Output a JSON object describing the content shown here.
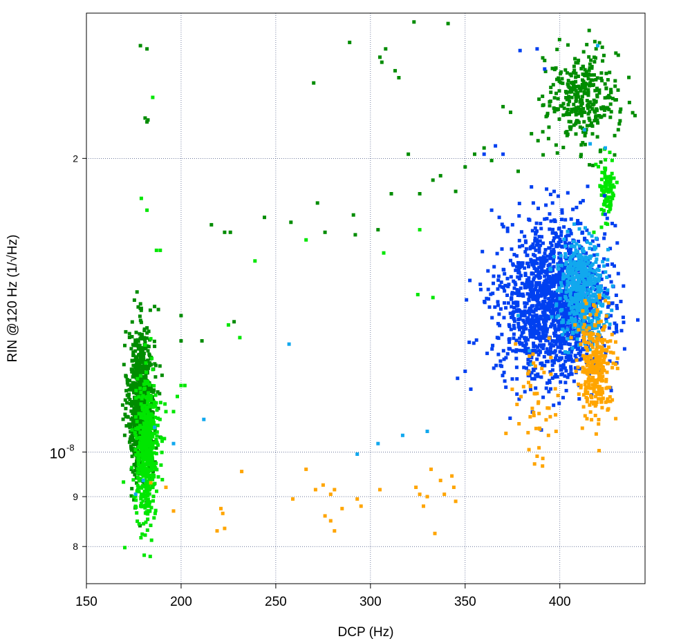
{
  "chart_data": {
    "type": "scatter",
    "xlabel": "DCP (Hz)",
    "ylabel": "RIN @120 Hz (1/√Hz)",
    "xlim": [
      150,
      445
    ],
    "ylim_log10": [
      -8.135,
      -7.55
    ],
    "y_scale": "log",
    "grid": true,
    "x_ticks": [
      {
        "value": 150,
        "label": "150"
      },
      {
        "value": 200,
        "label": "200"
      },
      {
        "value": 250,
        "label": "250"
      },
      {
        "value": 300,
        "label": "300"
      },
      {
        "value": 350,
        "label": "350"
      },
      {
        "value": 400,
        "label": "400"
      }
    ],
    "y_major_tick": {
      "value": 1e-08,
      "label": "10",
      "exponent": "-8"
    },
    "y_minor_ticks": [
      {
        "value": 8e-09,
        "label": "8"
      },
      {
        "value": 9e-09,
        "label": "9"
      },
      {
        "value": 2e-08,
        "label": "2"
      }
    ],
    "series": [
      {
        "color": "#008C00",
        "clusters": [
          {
            "n": 850,
            "x_mean": 179,
            "x_sd": 3.4,
            "y_mean": 1.12e-08,
            "y_sd_log10": 0.038
          },
          {
            "n": 330,
            "x_mean": 412,
            "x_sd": 9.5,
            "y_mean": 2.3e-08,
            "y_sd_log10": 0.025
          }
        ],
        "points": [
          [
            178.5,
            2.61e-08
          ],
          [
            182,
            2.59e-08
          ],
          [
            181,
            2.2e-08
          ],
          [
            182.5,
            2.19e-08
          ],
          [
            182,
            2.18e-08
          ],
          [
            186,
            1.41e-08
          ],
          [
            188,
            1.4e-08
          ],
          [
            200,
            1.38e-08
          ],
          [
            200,
            1.3e-08
          ],
          [
            211,
            1.3e-08
          ],
          [
            228,
            1.36e-08
          ],
          [
            216,
            1.71e-08
          ],
          [
            223,
            1.68e-08
          ],
          [
            226,
            1.68e-08
          ],
          [
            244,
            1.74e-08
          ],
          [
            258,
            1.72e-08
          ],
          [
            270,
            2.39e-08
          ],
          [
            272,
            1.8e-08
          ],
          [
            276,
            1.68e-08
          ],
          [
            289,
            2.63e-08
          ],
          [
            291,
            1.75e-08
          ],
          [
            292,
            1.67e-08
          ],
          [
            302,
            2.89e-08
          ],
          [
            305,
            2.54e-08
          ],
          [
            306,
            2.51e-08
          ],
          [
            308,
            2.59e-08
          ],
          [
            313,
            2.46e-08
          ],
          [
            315,
            2.42e-08
          ],
          [
            323,
            2.76e-08
          ],
          [
            320,
            2.02e-08
          ],
          [
            329,
            2.88e-08
          ],
          [
            336,
            2.9e-08
          ],
          [
            341,
            2.75e-08
          ],
          [
            346,
            2.88e-08
          ],
          [
            333,
            1.9e-08
          ],
          [
            337,
            1.92e-08
          ],
          [
            345,
            1.85e-08
          ],
          [
            311,
            1.84e-08
          ],
          [
            326,
            1.84e-08
          ],
          [
            304,
            1.69e-08
          ],
          [
            350,
            1.96e-08
          ],
          [
            355,
            2.02e-08
          ],
          [
            360,
            2.05e-08
          ],
          [
            364,
            1.99e-08
          ],
          [
            370,
            2.26e-08
          ],
          [
            374,
            2.23e-08
          ],
          [
            378,
            1.94e-08
          ],
          [
            389,
            2.3e-08
          ],
          [
            385,
            2.12e-08
          ],
          [
            392,
            2.52e-08
          ]
        ]
      },
      {
        "color": "#00E600",
        "clusters": [
          {
            "n": 480,
            "x_mean": 182,
            "x_sd": 3.0,
            "y_mean": 1e-08,
            "y_sd_log10": 0.035
          },
          {
            "n": 90,
            "x_mean": 425,
            "x_sd": 2.2,
            "y_mean": 1.86e-08,
            "y_sd_log10": 0.016
          }
        ],
        "points": [
          [
            185,
            2.31e-08
          ],
          [
            179,
            1.82e-08
          ],
          [
            182,
            1.77e-08
          ],
          [
            187,
            1.61e-08
          ],
          [
            189,
            1.61e-08
          ],
          [
            200,
            1.17e-08
          ],
          [
            202,
            1.17e-08
          ],
          [
            198,
            1.14e-08
          ],
          [
            192,
            1.1e-08
          ],
          [
            196,
            1.1e-08
          ],
          [
            225,
            1.35e-08
          ],
          [
            231,
            1.31e-08
          ],
          [
            239,
            1.57e-08
          ],
          [
            266,
            1.65e-08
          ],
          [
            307,
            1.6e-08
          ],
          [
            325,
            1.45e-08
          ],
          [
            333,
            1.44e-08
          ],
          [
            326,
            1.69e-08
          ],
          [
            418,
            1.68e-08
          ],
          [
            422,
            1.7e-08
          ]
        ]
      },
      {
        "color": "#0040F0",
        "clusters": [
          {
            "n": 1600,
            "x_mean": 397,
            "x_sd": 14,
            "y_mean": 1.42e-08,
            "y_sd_log10": 0.04
          }
        ],
        "points": [
          [
            360,
            2.02e-08
          ],
          [
            366,
            2.06e-08
          ],
          [
            370,
            2.02e-08
          ],
          [
            379,
            2.58e-08
          ],
          [
            388,
            2.59e-08
          ],
          [
            392,
            2.47e-08
          ],
          [
            385,
            1.87e-08
          ],
          [
            386,
            1.8e-08
          ],
          [
            393,
            1.86e-08
          ],
          [
            397,
            1.85e-08
          ],
          [
            405,
            1.69e-08
          ],
          [
            412,
            1.68e-08
          ],
          [
            364,
            1.77e-08
          ],
          [
            368,
            1.74e-08
          ],
          [
            375,
            1.71e-08
          ],
          [
            350,
            1.21e-08
          ],
          [
            346,
            1.19e-08
          ],
          [
            353,
            1.16e-08
          ]
        ]
      },
      {
        "color": "#11A8EE",
        "clusters": [
          {
            "n": 520,
            "x_mean": 412,
            "x_sd": 6,
            "y_mean": 1.47e-08,
            "y_sd_log10": 0.024
          }
        ],
        "points": [
          [
            406,
            2.88e-08
          ],
          [
            412,
            2.84e-08
          ],
          [
            420,
            2.61e-08
          ],
          [
            413,
            2.14e-08
          ],
          [
            416,
            2.07e-08
          ],
          [
            424,
            2.05e-08
          ],
          [
            378,
            1.38e-08
          ],
          [
            384,
            1.27e-08
          ],
          [
            385,
            1.23e-08
          ],
          [
            257,
            1.29e-08
          ],
          [
            212,
            1.08e-08
          ],
          [
            304,
            1.02e-08
          ],
          [
            317,
            1.04e-08
          ],
          [
            330,
            1.05e-08
          ],
          [
            293,
            9.95e-09
          ],
          [
            186,
            1.06e-08
          ],
          [
            196,
            1.02e-08
          ],
          [
            180,
            9.35e-09
          ],
          [
            176,
            9.05e-09
          ]
        ]
      },
      {
        "color": "#FFA500",
        "clusters": [
          {
            "n": 300,
            "x_mean": 419,
            "x_sd": 4.5,
            "y_mean": 1.22e-08,
            "y_sd_log10": 0.025
          },
          {
            "n": 45,
            "x_mean": 387,
            "x_sd": 7,
            "y_mean": 1.14e-08,
            "y_sd_log10": 0.03
          }
        ],
        "points": [
          [
            406,
            1.31e-08
          ],
          [
            411,
            1.29e-08
          ],
          [
            421,
            1.44e-08
          ],
          [
            414,
            1.42e-08
          ],
          [
            408,
            1.35e-08
          ],
          [
            398,
            1.05e-08
          ],
          [
            394,
            1.04e-08
          ],
          [
            389,
            1.01e-08
          ],
          [
            388,
            9.9e-09
          ],
          [
            391,
            9.85e-09
          ],
          [
            232,
            9.55e-09
          ],
          [
            266,
            9.6e-09
          ],
          [
            184,
            9.3e-09
          ],
          [
            192,
            9.2e-09
          ],
          [
            196,
            8.7e-09
          ],
          [
            219,
            8.3e-09
          ],
          [
            221,
            8.75e-09
          ],
          [
            222,
            8.65e-09
          ],
          [
            223,
            8.35e-09
          ],
          [
            259,
            8.95e-09
          ],
          [
            271,
            9.15e-09
          ],
          [
            275,
            9.25e-09
          ],
          [
            279,
            9.05e-09
          ],
          [
            281,
            9.15e-09
          ],
          [
            276,
            8.6e-09
          ],
          [
            279,
            8.5e-09
          ],
          [
            281,
            8.3e-09
          ],
          [
            285,
            8.75e-09
          ],
          [
            293,
            8.95e-09
          ],
          [
            295,
            8.8e-09
          ],
          [
            305,
            9.15e-09
          ],
          [
            326,
            9.05e-09
          ],
          [
            330,
            9e-09
          ],
          [
            328,
            8.8e-09
          ],
          [
            334,
            8.25e-09
          ],
          [
            337,
            9.35e-09
          ],
          [
            343,
            9.45e-09
          ],
          [
            344,
            9.2e-09
          ],
          [
            339,
            9.05e-09
          ],
          [
            345,
            8.9e-09
          ],
          [
            332,
            9.6e-09
          ],
          [
            324,
            9.2e-09
          ]
        ]
      }
    ]
  }
}
